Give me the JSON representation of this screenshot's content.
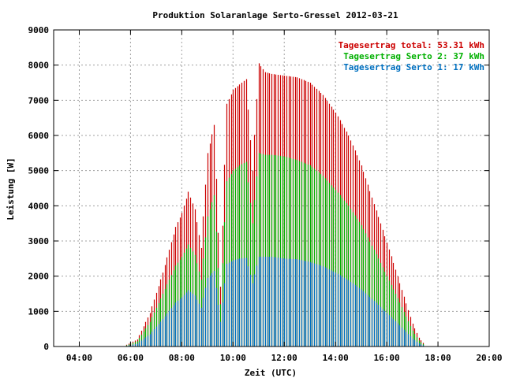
{
  "chart_data": {
    "type": "bar",
    "title": "Produktion Solaranlage Serto-Gressel 2012-03-21",
    "xlabel": "Zeit (UTC)",
    "ylabel": "Leistung [W]",
    "xlim": [
      3,
      20
    ],
    "ylim": [
      0,
      9000
    ],
    "x_ticks": [
      "04:00",
      "06:00",
      "08:00",
      "10:00",
      "12:00",
      "14:00",
      "16:00",
      "18:00",
      "20:00"
    ],
    "x_tick_values": [
      4,
      6,
      8,
      10,
      12,
      14,
      16,
      18,
      20
    ],
    "y_ticks": [
      0,
      1000,
      2000,
      3000,
      4000,
      5000,
      6000,
      7000,
      8000,
      9000
    ],
    "grid": true,
    "legend_position": "top-right",
    "series": [
      {
        "name": "Tagesertrag total: 53.31 kWh",
        "color": "#cc0000",
        "points": [
          [
            5.75,
            20
          ],
          [
            6.25,
            200
          ],
          [
            6.75,
            950
          ],
          [
            7.25,
            2100
          ],
          [
            7.75,
            3400
          ],
          [
            8.0,
            3800
          ],
          [
            8.25,
            4400
          ],
          [
            8.5,
            3900
          ],
          [
            8.75,
            2800
          ],
          [
            9.0,
            5500
          ],
          [
            9.25,
            6300
          ],
          [
            9.5,
            1700
          ],
          [
            9.75,
            6900
          ],
          [
            10.0,
            7300
          ],
          [
            10.25,
            7450
          ],
          [
            10.5,
            7600
          ],
          [
            10.75,
            5000
          ],
          [
            11.0,
            8050
          ],
          [
            11.25,
            7800
          ],
          [
            11.5,
            7750
          ],
          [
            12.0,
            7700
          ],
          [
            12.5,
            7650
          ],
          [
            13.0,
            7500
          ],
          [
            13.5,
            7150
          ],
          [
            14.0,
            6650
          ],
          [
            14.5,
            6000
          ],
          [
            15.0,
            5150
          ],
          [
            15.5,
            4050
          ],
          [
            16.0,
            2950
          ],
          [
            16.5,
            1800
          ],
          [
            17.0,
            650
          ],
          [
            17.25,
            250
          ],
          [
            17.5,
            30
          ]
        ]
      },
      {
        "name": "Tagesertrag Serto 2: 37 kWh",
        "color": "#00b000",
        "points": [
          [
            5.75,
            10
          ],
          [
            6.25,
            150
          ],
          [
            6.75,
            700
          ],
          [
            7.25,
            1500
          ],
          [
            7.75,
            2300
          ],
          [
            8.0,
            2550
          ],
          [
            8.25,
            2900
          ],
          [
            8.5,
            2600
          ],
          [
            8.75,
            1900
          ],
          [
            9.0,
            3700
          ],
          [
            9.25,
            4300
          ],
          [
            9.5,
            1200
          ],
          [
            9.75,
            4700
          ],
          [
            10.0,
            5000
          ],
          [
            10.25,
            5150
          ],
          [
            10.5,
            5250
          ],
          [
            10.75,
            3500
          ],
          [
            11.0,
            5500
          ],
          [
            11.25,
            5450
          ],
          [
            11.5,
            5450
          ],
          [
            12.0,
            5400
          ],
          [
            12.5,
            5300
          ],
          [
            13.0,
            5150
          ],
          [
            13.5,
            4850
          ],
          [
            14.0,
            4450
          ],
          [
            14.5,
            4000
          ],
          [
            15.0,
            3450
          ],
          [
            15.5,
            2750
          ],
          [
            16.0,
            2000
          ],
          [
            16.5,
            1250
          ],
          [
            17.0,
            450
          ],
          [
            17.25,
            170
          ],
          [
            17.5,
            20
          ]
        ]
      },
      {
        "name": "Tagesertrag Serto 1: 17 kWh",
        "color": "#0070c0",
        "points": [
          [
            5.75,
            5
          ],
          [
            6.25,
            80
          ],
          [
            6.75,
            350
          ],
          [
            7.25,
            780
          ],
          [
            7.75,
            1250
          ],
          [
            8.0,
            1400
          ],
          [
            8.25,
            1600
          ],
          [
            8.5,
            1450
          ],
          [
            8.75,
            1100
          ],
          [
            9.0,
            1950
          ],
          [
            9.25,
            2150
          ],
          [
            9.5,
            700
          ],
          [
            9.75,
            2350
          ],
          [
            10.0,
            2450
          ],
          [
            10.25,
            2500
          ],
          [
            10.5,
            2520
          ],
          [
            10.75,
            1800
          ],
          [
            11.0,
            2550
          ],
          [
            11.25,
            2550
          ],
          [
            11.5,
            2550
          ],
          [
            12.0,
            2500
          ],
          [
            12.5,
            2480
          ],
          [
            13.0,
            2400
          ],
          [
            13.5,
            2280
          ],
          [
            14.0,
            2100
          ],
          [
            14.5,
            1880
          ],
          [
            15.0,
            1620
          ],
          [
            15.5,
            1300
          ],
          [
            16.0,
            950
          ],
          [
            16.5,
            600
          ],
          [
            17.0,
            230
          ],
          [
            17.25,
            90
          ],
          [
            17.5,
            10
          ]
        ]
      }
    ]
  }
}
